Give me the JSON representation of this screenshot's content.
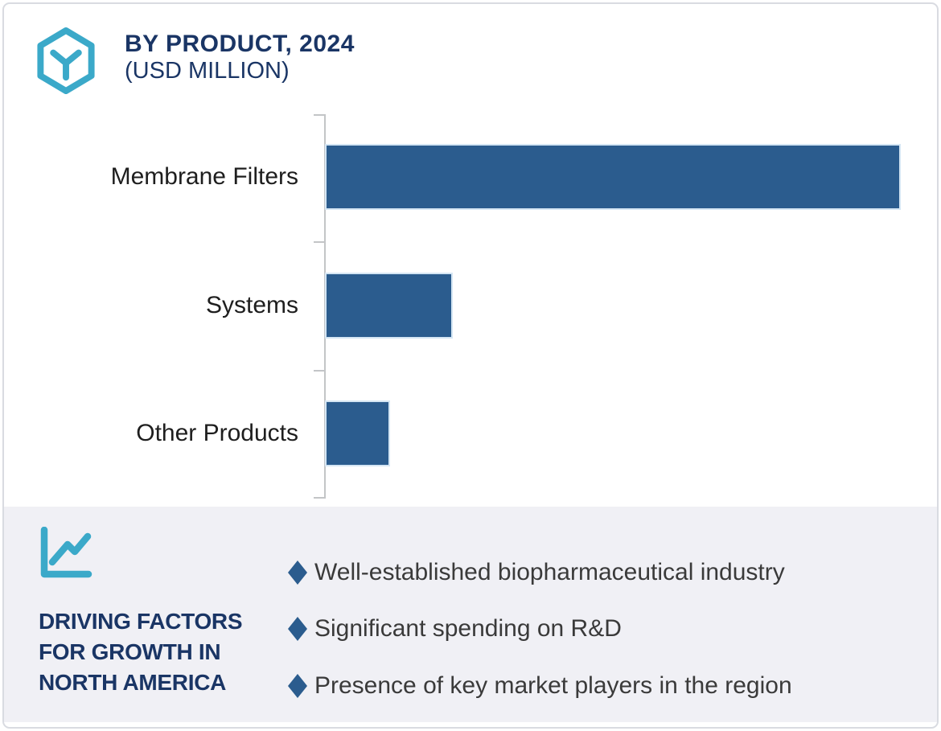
{
  "header": {
    "icon": "hexagon-cube-icon",
    "title_line1": "BY PRODUCT, 2024",
    "title_line2": "(USD MILLION)"
  },
  "chart_data": {
    "type": "bar",
    "orientation": "horizontal",
    "title": "BY PRODUCT, 2024 (USD MILLION)",
    "unit": "USD Million",
    "categories": [
      "Membrane Filters",
      "Systems",
      "Other Products"
    ],
    "values": [
      100,
      21.8,
      10.8
    ],
    "value_scale": "relative bar length, % of longest bar (numeric axis not labeled in image)",
    "xlim": [
      0,
      100
    ],
    "bar_color": "#2B5C8E",
    "axis": {
      "style": "left vertical line with 4 ticks",
      "gridlines": false,
      "value_labels": false
    },
    "legend": null
  },
  "panel": {
    "icon": "line-chart-icon",
    "heading_lines": [
      "DRIVING FACTORS",
      "FOR GROWTH IN",
      "NORTH AMERICA"
    ],
    "bullets": [
      {
        "marker": "diamond-icon",
        "text": "Well-established biopharmaceutical industry"
      },
      {
        "marker": "diamond-icon",
        "text": "Significant spending on R&D"
      },
      {
        "marker": "diamond-icon",
        "text": "Presence of key market players in the region"
      }
    ]
  },
  "theme": {
    "teal": "#3BA9C9",
    "bar": "#2B5C8E",
    "navy": "#1A3565",
    "panel": "#F0F0F5",
    "axis": "#C3C5C7",
    "text": "#3A3A3A",
    "label": "#1E1E1E",
    "border": "#D9DBE1",
    "bar_outline": "#D5E6F4"
  }
}
